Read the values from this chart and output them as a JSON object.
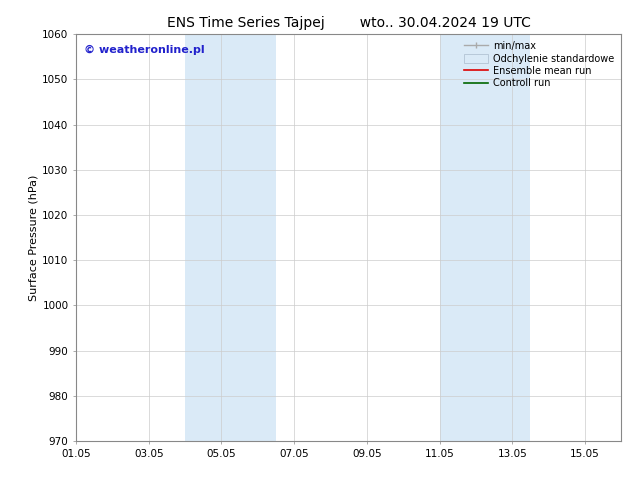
{
  "title": "ENS Time Series Tajpej        wto.. 30.04.2024 19 UTC",
  "ylabel": "Surface Pressure (hPa)",
  "ylim": [
    970,
    1060
  ],
  "yticks": [
    970,
    980,
    990,
    1000,
    1010,
    1020,
    1030,
    1040,
    1050,
    1060
  ],
  "xtick_labels": [
    "01.05",
    "03.05",
    "05.05",
    "07.05",
    "09.05",
    "11.05",
    "13.05",
    "15.05"
  ],
  "xtick_day_offsets": [
    0,
    2,
    4,
    6,
    8,
    10,
    12,
    14
  ],
  "xrange_days": 15,
  "shaded_bands": [
    {
      "xstart_day": 3,
      "xend_day": 5.5
    },
    {
      "xstart_day": 10,
      "xend_day": 12.5
    }
  ],
  "shade_color": "#daeaf7",
  "watermark_text": "© weatheronline.pl",
  "watermark_color": "#2222cc",
  "watermark_fontsize": 8,
  "bg_color": "#ffffff",
  "plot_bg_color": "#ffffff",
  "grid_color": "#cccccc",
  "grid_lw": 0.5,
  "title_fontsize": 10,
  "ylabel_fontsize": 8,
  "tick_fontsize": 7.5,
  "legend_fontsize": 7,
  "legend_min_max_color": "#aaaaaa",
  "legend_std_color": "#daeaf7",
  "legend_std_edge_color": "#aabbcc",
  "legend_mean_color": "#dd0000",
  "legend_ctrl_color": "#006600",
  "spine_color": "#888888",
  "tick_color": "#333333"
}
